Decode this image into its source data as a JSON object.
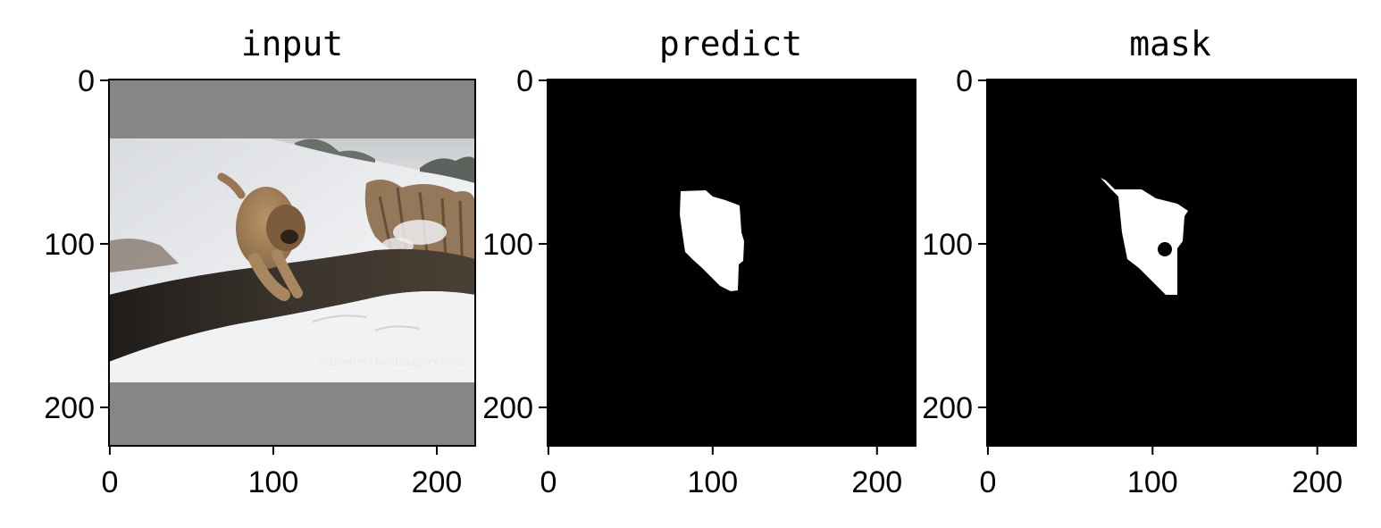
{
  "figure": {
    "image_size": 224,
    "axis_ticks": [
      0,
      100,
      200
    ],
    "panels": [
      {
        "id": "input",
        "title": "input",
        "content": "photo",
        "photo": {
          "watermark": "©BostonThekImagery.com",
          "padding_color": "#868686"
        }
      },
      {
        "id": "predict",
        "title": "predict",
        "content": "mask"
      },
      {
        "id": "mask",
        "title": "mask",
        "content": "mask"
      }
    ]
  },
  "colors": {
    "mask_background": "#000000",
    "mask_foreground": "#ffffff",
    "snow": "#eef0f2",
    "dog_fur": "#a9875f",
    "creek": "#3b342d",
    "brush": "#8a6a48"
  }
}
